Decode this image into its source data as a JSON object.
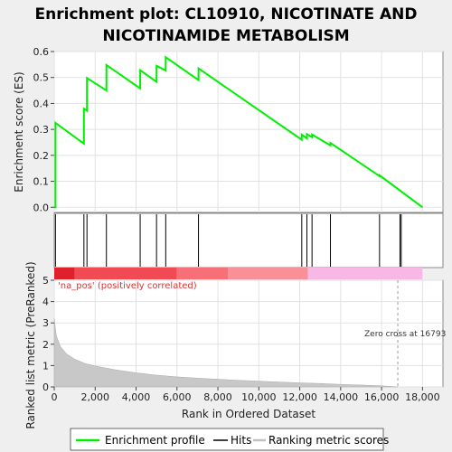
{
  "chart_data": {
    "type": "line",
    "title_lines": [
      "Enrichment plot: CL10910, NICOTINATE AND",
      "NICOTINAMIDE METABOLISM"
    ],
    "xlabel": "Rank in Ordered Dataset",
    "es_ylabel": "Enrichment score (ES)",
    "metric_ylabel": "Ranked list metric (PreRanked)",
    "xlim": [
      0,
      19000
    ],
    "x_ticks": [
      0,
      2000,
      4000,
      6000,
      8000,
      10000,
      12000,
      14000,
      16000,
      18000
    ],
    "x_tick_labels": [
      "0",
      "2,000",
      "4,000",
      "6,000",
      "8,000",
      "10,000",
      "12,000",
      "14,000",
      "16,000",
      "18,000"
    ],
    "es_ylim": [
      -0.02,
      0.6
    ],
    "es_ticks": [
      0.0,
      0.1,
      0.2,
      0.3,
      0.4,
      0.5,
      0.6
    ],
    "es_tick_labels": [
      "0.0",
      "0.1",
      "0.2",
      "0.3",
      "0.4",
      "0.5",
      "0.6"
    ],
    "metric_ylim": [
      0,
      5
    ],
    "metric_ticks": [
      0,
      1,
      2,
      3,
      4,
      5
    ],
    "metric_tick_labels": [
      "0",
      "1",
      "2",
      "3",
      "4",
      "5"
    ],
    "series": [
      {
        "name": "Enrichment profile",
        "color": "#00ee00",
        "x": [
          0,
          60,
          60,
          1450,
          1450,
          1600,
          1600,
          2550,
          2550,
          4200,
          4200,
          5000,
          5000,
          5450,
          5450,
          7050,
          7050,
          12100,
          12100,
          12350,
          12350,
          12600,
          12600,
          13500,
          13500,
          15900,
          15900,
          18000
        ],
        "y": [
          0.0,
          0.0,
          0.325,
          0.245,
          0.38,
          0.372,
          0.498,
          0.45,
          0.548,
          0.458,
          0.528,
          0.483,
          0.545,
          0.527,
          0.578,
          0.49,
          0.535,
          0.26,
          0.28,
          0.265,
          0.282,
          0.27,
          0.28,
          0.238,
          0.248,
          0.12,
          0.123,
          0.0
        ]
      }
    ],
    "hits": [
      60,
      1450,
      1600,
      2550,
      4200,
      5000,
      5450,
      7050,
      12100,
      12350,
      12600,
      13500,
      15900,
      16900,
      16960
    ],
    "hits_name": "Hits",
    "metric_name": "Ranking metric scores",
    "metric_curve": {
      "x": [
        0,
        100,
        300,
        600,
        1000,
        1500,
        2000,
        3000,
        4000,
        5000,
        6000,
        7000,
        8000,
        9000,
        10000,
        11000,
        12000,
        13000,
        14000,
        15000,
        16000,
        16793
      ],
      "y": [
        3.2,
        2.4,
        1.9,
        1.55,
        1.3,
        1.1,
        0.98,
        0.8,
        0.66,
        0.55,
        0.47,
        0.41,
        0.36,
        0.31,
        0.27,
        0.23,
        0.19,
        0.16,
        0.12,
        0.09,
        0.05,
        0.0
      ]
    },
    "pos_label": "'na_pos' (positively correlated)",
    "zero_cross_label": "Zero cross at 16793",
    "zero_cross_x": 16793,
    "band_segments": [
      {
        "from": 0,
        "to": 1000,
        "color": "#e0202a"
      },
      {
        "from": 1000,
        "to": 6000,
        "color": "#f24a52"
      },
      {
        "from": 6000,
        "to": 8500,
        "color": "#f77078"
      },
      {
        "from": 8500,
        "to": 12400,
        "color": "#f99098"
      },
      {
        "from": 12400,
        "to": 18000,
        "color": "#f7b8e6"
      }
    ],
    "legend": [
      "Enrichment profile",
      "Hits",
      "Ranking metric scores"
    ],
    "legend_position": "bottom"
  }
}
